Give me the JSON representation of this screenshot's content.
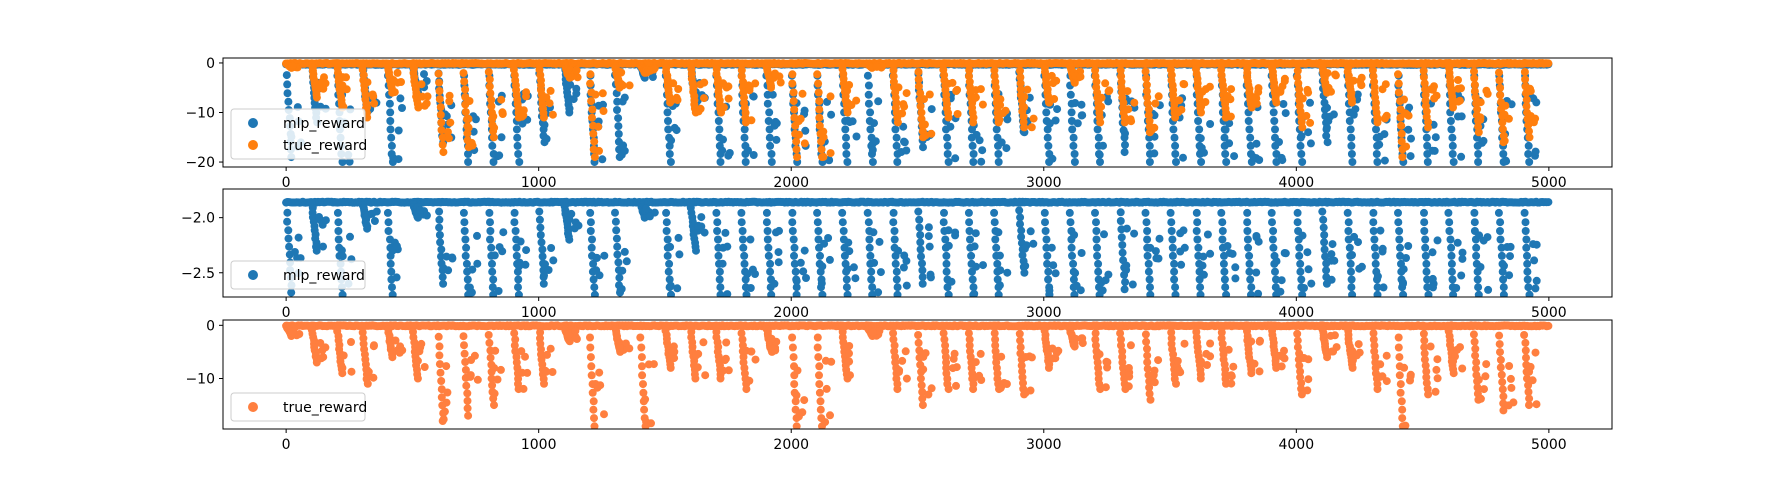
{
  "chart_data": [
    {
      "type": "scatter",
      "xlim": [
        -250,
        5250
      ],
      "ylim": [
        -21,
        1
      ],
      "xticks": [
        0,
        1000,
        2000,
        3000,
        4000,
        5000
      ],
      "yticks": [
        0,
        -10,
        -20
      ],
      "legend": "lower-left",
      "grid": false,
      "x_domain": [
        0,
        5000
      ],
      "episode_length": 100,
      "series": [
        {
          "name": "mlp_reward",
          "color": "#1f77b4",
          "plateau": -0.3,
          "floor": -20,
          "spike_depth": [
            -19,
            -12,
            -20,
            -10,
            -20,
            -6,
            -16,
            -20,
            -20,
            -20,
            -16,
            -10,
            -20,
            -19,
            -3,
            -20,
            -8,
            -20,
            -20,
            -20,
            -20,
            -20,
            -20,
            -20,
            -20,
            -17,
            -20,
            -20,
            -20,
            -14,
            -20,
            -20,
            -20,
            -18,
            -20,
            -20,
            -20,
            -20,
            -20,
            -20,
            -20,
            -16,
            -20,
            -20,
            -20,
            -20,
            -20,
            -20,
            -20,
            -20
          ]
        },
        {
          "name": "true_reward",
          "color": "#ff7f0e",
          "plateau": -0.1,
          "floor": -19,
          "spike_depth": [
            -1,
            -7,
            -9,
            -11,
            -6,
            -9,
            -18,
            -17,
            -15,
            -11,
            -11,
            -3,
            -19,
            -5,
            -2,
            -8,
            -10,
            -10,
            -12,
            -5,
            -19,
            -19,
            -10,
            -1,
            -12,
            -15,
            -11,
            -12,
            -12,
            -13,
            -8,
            -4,
            -12,
            -12,
            -14,
            -11,
            -10,
            -11,
            -9,
            -8,
            -13,
            -6,
            -8,
            -12,
            -19,
            -13,
            -9,
            -14,
            -16,
            -15
          ]
        }
      ]
    },
    {
      "type": "scatter",
      "xlim": [
        -250,
        5250
      ],
      "ylim": [
        -2.72,
        -1.74
      ],
      "xticks": [
        0,
        1000,
        2000,
        3000,
        4000,
        5000
      ],
      "yticks": [
        -2.0,
        -2.5
      ],
      "ytick_labels": [
        "−2.0",
        "−2.5"
      ],
      "legend": "lower-left",
      "grid": false,
      "x_domain": [
        0,
        5000
      ],
      "episode_length": 100,
      "series": [
        {
          "name": "mlp_reward",
          "color": "#1f77b4",
          "plateau": -1.86,
          "floor": -2.7,
          "spike_depth": [
            -2.68,
            -2.3,
            -2.7,
            -2.1,
            -2.7,
            -2.0,
            -2.6,
            -2.7,
            -2.7,
            -2.7,
            -2.6,
            -2.2,
            -2.7,
            -2.68,
            -2.0,
            -2.7,
            -2.3,
            -2.7,
            -2.7,
            -2.7,
            -2.7,
            -2.7,
            -2.7,
            -2.7,
            -2.7,
            -2.6,
            -2.7,
            -2.7,
            -2.7,
            -2.5,
            -2.7,
            -2.7,
            -2.7,
            -2.65,
            -2.7,
            -2.7,
            -2.7,
            -2.7,
            -2.7,
            -2.7,
            -2.7,
            -2.6,
            -2.7,
            -2.7,
            -2.7,
            -2.7,
            -2.7,
            -2.7,
            -2.7,
            -2.7
          ]
        }
      ]
    },
    {
      "type": "scatter",
      "xlim": [
        -250,
        5250
      ],
      "ylim": [
        -19.5,
        1
      ],
      "xticks": [
        0,
        1000,
        2000,
        3000,
        4000,
        5000
      ],
      "yticks": [
        0,
        -10
      ],
      "legend": "lower-left",
      "grid": false,
      "x_domain": [
        0,
        5000
      ],
      "episode_length": 100,
      "series": [
        {
          "name": "true_reward",
          "color": "#ff7f3f",
          "plateau": -0.1,
          "floor": -19,
          "spike_depth": [
            -2,
            -7,
            -9,
            -11,
            -6,
            -10,
            -18,
            -17,
            -15,
            -12,
            -11,
            -3,
            -19,
            -5,
            -19,
            -8,
            -10,
            -10,
            -12,
            -5,
            -19,
            -19,
            -10,
            -2,
            -12,
            -15,
            -12,
            -12,
            -12,
            -13,
            -8,
            -4,
            -12,
            -12,
            -14,
            -11,
            -10,
            -11,
            -9,
            -8,
            -13,
            -6,
            -8,
            -12,
            -19,
            -13,
            -9,
            -14,
            -16,
            -15
          ]
        }
      ]
    }
  ]
}
